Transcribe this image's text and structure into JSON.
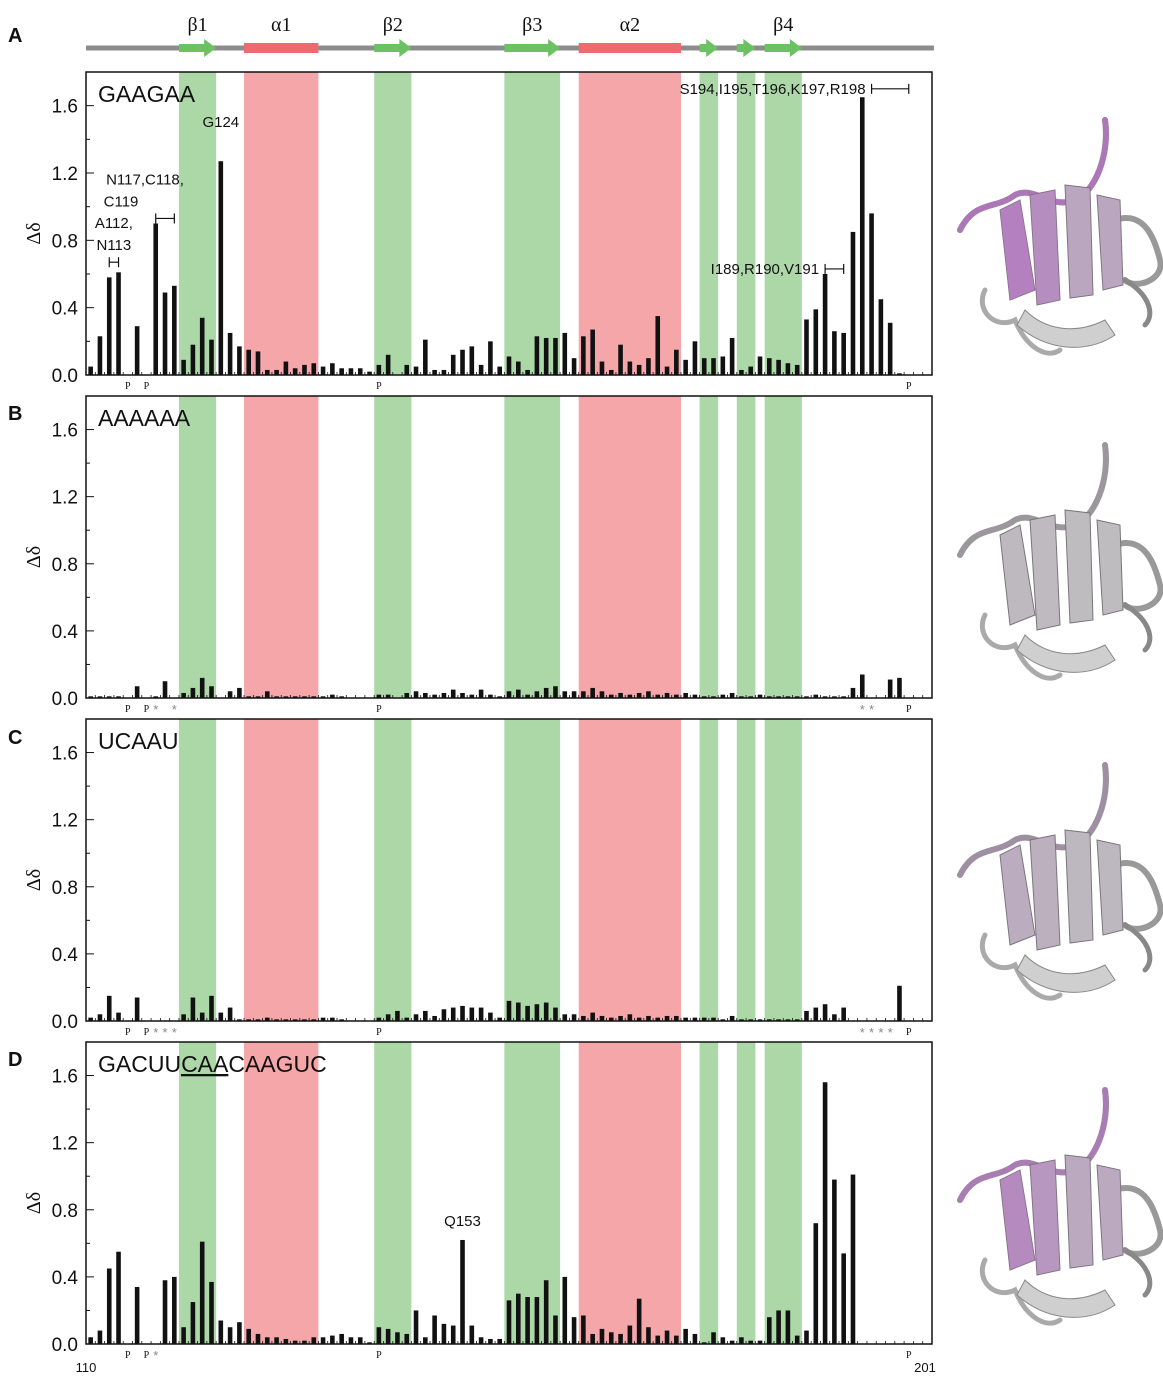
{
  "figure": {
    "x_start_label": "110",
    "x_end_label": "201",
    "ylabel": "Δδ",
    "colors": {
      "helix": "#f4a6a9",
      "strand": "#acd8a8",
      "helix_bar": "#ee6a6e",
      "strand_arrow": "#6cc162",
      "backbone": "#8c8c8c",
      "bars": "#111111",
      "protein_ribbon": "#bfbfbf",
      "protein_highlight": "#b06cc0"
    }
  },
  "secondary_structure": [
    {
      "type": "strand",
      "label": "β1",
      "start": 120,
      "end": 123
    },
    {
      "type": "helix",
      "label": "α1",
      "start": 127,
      "end": 134
    },
    {
      "type": "strand",
      "label": "β2",
      "start": 141,
      "end": 144
    },
    {
      "type": "strand",
      "label": "β3",
      "start": 155,
      "end": 160
    },
    {
      "type": "helix",
      "label": "α2",
      "start": 163,
      "end": 173
    },
    {
      "type": "strand",
      "label": "",
      "start": 176,
      "end": 177
    },
    {
      "type": "strand",
      "label": "",
      "start": 180,
      "end": 181
    },
    {
      "type": "strand",
      "label": "β4",
      "start": 183,
      "end": 186
    }
  ],
  "chart_data": [
    {
      "type": "bar",
      "panel": "A",
      "title": "GAAGAA",
      "ylabel": "Δδ",
      "ylim": [
        0,
        1.8
      ],
      "yticks": [
        "0.0",
        "0.4",
        "0.8",
        "1.2",
        "1.6"
      ],
      "x": [
        110,
        111,
        112,
        113,
        114,
        115,
        116,
        117,
        118,
        119,
        120,
        121,
        122,
        123,
        124,
        125,
        126,
        127,
        128,
        129,
        130,
        131,
        132,
        133,
        134,
        135,
        136,
        137,
        138,
        139,
        140,
        141,
        142,
        143,
        144,
        145,
        146,
        147,
        148,
        149,
        150,
        151,
        152,
        153,
        154,
        155,
        156,
        157,
        158,
        159,
        160,
        161,
        162,
        163,
        164,
        165,
        166,
        167,
        168,
        169,
        170,
        171,
        172,
        173,
        174,
        175,
        176,
        177,
        178,
        179,
        180,
        181,
        182,
        183,
        184,
        185,
        186,
        187,
        188,
        189,
        190,
        191,
        192,
        193,
        194,
        195,
        196,
        197,
        198,
        199,
        200
      ],
      "values": [
        0.05,
        0.23,
        0.58,
        0.61,
        0,
        0.29,
        0,
        0.9,
        0.49,
        0.53,
        0.09,
        0.18,
        0.34,
        0.21,
        1.27,
        0.25,
        0.17,
        0.15,
        0.14,
        0.03,
        0.03,
        0.08,
        0.04,
        0.06,
        0.07,
        0.05,
        0.07,
        0.04,
        0.04,
        0.04,
        0.02,
        0.06,
        0.12,
        0,
        0.06,
        0.05,
        0.21,
        0.03,
        0.03,
        0.12,
        0.15,
        0.17,
        0.06,
        0.2,
        0.05,
        0.11,
        0.08,
        0.03,
        0.23,
        0.22,
        0.22,
        0.25,
        0.1,
        0.23,
        0.27,
        0.08,
        0.03,
        0.18,
        0.08,
        0.06,
        0.1,
        0.35,
        0.05,
        0.15,
        0.09,
        0.2,
        0.1,
        0.1,
        0.11,
        0.22,
        0.03,
        0.05,
        0.11,
        0.1,
        0.09,
        0.07,
        0.06,
        0.33,
        0.39,
        0.6,
        0.26,
        0.25,
        0.85,
        1.65,
        0.96,
        0.45,
        0.31,
        0.01,
        0,
        0,
        0
      ],
      "markers": {
        "P": [
          114,
          116,
          141,
          198
        ]
      },
      "annotations": [
        {
          "text": "A112,",
          "text2": "N113",
          "from": 112,
          "to": 113,
          "value": 0.67
        },
        {
          "text": "N117,C118,",
          "text2": "C119",
          "from": 117,
          "to": 119,
          "value": 0.93
        },
        {
          "text": "G124",
          "text2": "",
          "from": 124,
          "to": 124,
          "value": 1.45
        },
        {
          "text": "I189,R190,V191",
          "text2": "",
          "from": 189,
          "to": 191,
          "value": 0.63
        },
        {
          "text": "S194,I195,T196,K197,R198",
          "text2": "",
          "from": 194,
          "to": 198,
          "value": 1.7
        }
      ]
    },
    {
      "type": "bar",
      "panel": "B",
      "title": "AAAAAA",
      "ylabel": "Δδ",
      "ylim": [
        0,
        1.8
      ],
      "yticks": [
        "0.0",
        "0.4",
        "0.8",
        "1.2",
        "1.6"
      ],
      "x": [
        110,
        111,
        112,
        113,
        114,
        115,
        116,
        117,
        118,
        119,
        120,
        121,
        122,
        123,
        124,
        125,
        126,
        127,
        128,
        129,
        130,
        131,
        132,
        133,
        134,
        135,
        136,
        137,
        138,
        139,
        140,
        141,
        142,
        143,
        144,
        145,
        146,
        147,
        148,
        149,
        150,
        151,
        152,
        153,
        154,
        155,
        156,
        157,
        158,
        159,
        160,
        161,
        162,
        163,
        164,
        165,
        166,
        167,
        168,
        169,
        170,
        171,
        172,
        173,
        174,
        175,
        176,
        177,
        178,
        179,
        180,
        181,
        182,
        183,
        184,
        185,
        186,
        187,
        188,
        189,
        190,
        191,
        192,
        193,
        194,
        195,
        196,
        197,
        198,
        199,
        200
      ],
      "values": [
        0.01,
        0.01,
        0.01,
        0.01,
        0,
        0.07,
        0,
        0.01,
        0.1,
        0,
        0.03,
        0.06,
        0.12,
        0.07,
        0,
        0.04,
        0.06,
        0.01,
        0.01,
        0.04,
        0.01,
        0.01,
        0.01,
        0.01,
        0.01,
        0.01,
        0.02,
        0.01,
        0,
        0,
        0,
        0.02,
        0.02,
        0,
        0.03,
        0.04,
        0.03,
        0.02,
        0.03,
        0.05,
        0.03,
        0.02,
        0.05,
        0.02,
        0.01,
        0.04,
        0.05,
        0.02,
        0.04,
        0.06,
        0.07,
        0.04,
        0.04,
        0.04,
        0.06,
        0.04,
        0.02,
        0.03,
        0.02,
        0.03,
        0.04,
        0.02,
        0.03,
        0.02,
        0.03,
        0.02,
        0.01,
        0.01,
        0.02,
        0.03,
        0.01,
        0.01,
        0.02,
        0.01,
        0.01,
        0.01,
        0.01,
        0.01,
        0.02,
        0.01,
        0.01,
        0.01,
        0.06,
        0.14,
        0,
        0,
        0.11,
        0.12,
        0,
        0,
        0
      ],
      "markers": {
        "P": [
          114,
          116,
          141,
          198
        ],
        "*": [
          117,
          119,
          193,
          194
        ]
      }
    },
    {
      "type": "bar",
      "panel": "C",
      "title": "UCAAU",
      "ylabel": "Δδ",
      "ylim": [
        0,
        1.8
      ],
      "yticks": [
        "0.0",
        "0.4",
        "0.8",
        "1.2",
        "1.6"
      ],
      "x": [
        110,
        111,
        112,
        113,
        114,
        115,
        116,
        117,
        118,
        119,
        120,
        121,
        122,
        123,
        124,
        125,
        126,
        127,
        128,
        129,
        130,
        131,
        132,
        133,
        134,
        135,
        136,
        137,
        138,
        139,
        140,
        141,
        142,
        143,
        144,
        145,
        146,
        147,
        148,
        149,
        150,
        151,
        152,
        153,
        154,
        155,
        156,
        157,
        158,
        159,
        160,
        161,
        162,
        163,
        164,
        165,
        166,
        167,
        168,
        169,
        170,
        171,
        172,
        173,
        174,
        175,
        176,
        177,
        178,
        179,
        180,
        181,
        182,
        183,
        184,
        185,
        186,
        187,
        188,
        189,
        190,
        191,
        192,
        193,
        194,
        195,
        196,
        197,
        198,
        199,
        200
      ],
      "values": [
        0.02,
        0.04,
        0.15,
        0.05,
        0,
        0.14,
        0,
        0,
        0,
        0,
        0.04,
        0.14,
        0.05,
        0.15,
        0.05,
        0.08,
        0.01,
        0.01,
        0.01,
        0.02,
        0.01,
        0.01,
        0.01,
        0.01,
        0.01,
        0.02,
        0.02,
        0.01,
        0,
        0,
        0,
        0.02,
        0.04,
        0.06,
        0.02,
        0.04,
        0.06,
        0.03,
        0.07,
        0.08,
        0.09,
        0.08,
        0.08,
        0.05,
        0.02,
        0.12,
        0.11,
        0.09,
        0.1,
        0.11,
        0.08,
        0.04,
        0.04,
        0.03,
        0.05,
        0.03,
        0.02,
        0.03,
        0.04,
        0.02,
        0.03,
        0.02,
        0.03,
        0.03,
        0.02,
        0.02,
        0.02,
        0.02,
        0.01,
        0.03,
        0.01,
        0.01,
        0.01,
        0.01,
        0.01,
        0.01,
        0.01,
        0.06,
        0.08,
        0.1,
        0.04,
        0.08,
        0,
        0,
        0,
        0,
        0,
        0.21,
        0,
        0,
        0
      ],
      "markers": {
        "P": [
          114,
          116,
          141,
          198
        ],
        "*": [
          117,
          118,
          119,
          193,
          194,
          195,
          196
        ]
      }
    },
    {
      "type": "bar",
      "panel": "D",
      "title_parts": [
        "GACUU",
        "CAA",
        "CAAGUC"
      ],
      "ylabel": "Δδ",
      "ylim": [
        0,
        1.8
      ],
      "yticks": [
        "0.0",
        "0.4",
        "0.8",
        "1.2",
        "1.6"
      ],
      "x": [
        110,
        111,
        112,
        113,
        114,
        115,
        116,
        117,
        118,
        119,
        120,
        121,
        122,
        123,
        124,
        125,
        126,
        127,
        128,
        129,
        130,
        131,
        132,
        133,
        134,
        135,
        136,
        137,
        138,
        139,
        140,
        141,
        142,
        143,
        144,
        145,
        146,
        147,
        148,
        149,
        150,
        151,
        152,
        153,
        154,
        155,
        156,
        157,
        158,
        159,
        160,
        161,
        162,
        163,
        164,
        165,
        166,
        167,
        168,
        169,
        170,
        171,
        172,
        173,
        174,
        175,
        176,
        177,
        178,
        179,
        180,
        181,
        182,
        183,
        184,
        185,
        186,
        187,
        188,
        189,
        190,
        191,
        192,
        193,
        194,
        195,
        196,
        197,
        198,
        199,
        200
      ],
      "values": [
        0.04,
        0.08,
        0.45,
        0.55,
        0,
        0.34,
        0,
        0,
        0.38,
        0.4,
        0.1,
        0.25,
        0.61,
        0.37,
        0.14,
        0.1,
        0.13,
        0.09,
        0.06,
        0.04,
        0.04,
        0.03,
        0.02,
        0.02,
        0.04,
        0.04,
        0.05,
        0.06,
        0.04,
        0.04,
        0.01,
        0.1,
        0.09,
        0.07,
        0.06,
        0.2,
        0.04,
        0.17,
        0.12,
        0.11,
        0.62,
        0.11,
        0.04,
        0.03,
        0.03,
        0.26,
        0.3,
        0.28,
        0.28,
        0.38,
        0.17,
        0.4,
        0.16,
        0.17,
        0.06,
        0.09,
        0.07,
        0.06,
        0.11,
        0.27,
        0.1,
        0.05,
        0.08,
        0.05,
        0.09,
        0.06,
        0.01,
        0.07,
        0.04,
        0.02,
        0.04,
        0.02,
        0.02,
        0.16,
        0.2,
        0.2,
        0.05,
        0.08,
        0.72,
        1.56,
        0.98,
        0.54,
        1.01,
        0,
        0,
        0,
        0,
        0,
        0,
        0,
        0
      ],
      "markers": {
        "P": [
          114,
          116,
          141,
          198
        ],
        "*": [
          117
        ]
      },
      "annotations": [
        {
          "text": "Q153",
          "text2": "",
          "from": 150,
          "to": 150,
          "value": 0.68
        }
      ]
    }
  ],
  "panels_meta": [
    {
      "letter": "A"
    },
    {
      "letter": "B"
    },
    {
      "letter": "C"
    },
    {
      "letter": "D"
    }
  ],
  "structures": [
    {
      "name": "structure-a",
      "highlight": 0.85
    },
    {
      "name": "structure-b",
      "highlight": 0.08
    },
    {
      "name": "structure-c",
      "highlight": 0.25
    },
    {
      "name": "structure-d",
      "highlight": 0.7
    }
  ]
}
